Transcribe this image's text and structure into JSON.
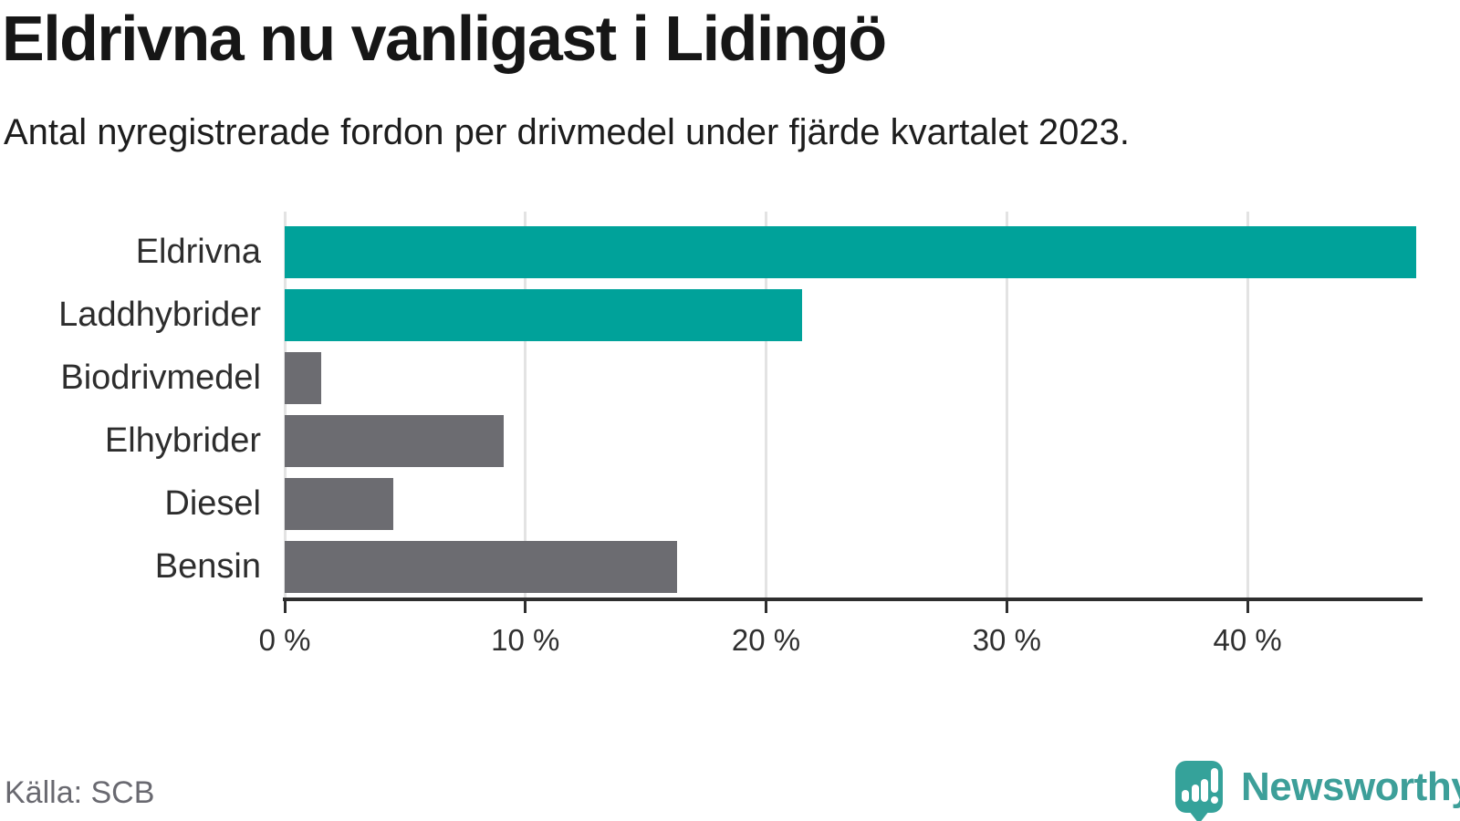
{
  "chart_data": {
    "type": "bar",
    "orientation": "horizontal",
    "title": "Eldrivna nu vanligast i Lidingö",
    "subtitle": "Antal nyregistrerade fordon per drivmedel under fjärde kvartalet 2023.",
    "categories": [
      "Eldrivna",
      "Laddhybrider",
      "Biodrivmedel",
      "Elhybrider",
      "Diesel",
      "Bensin"
    ],
    "values": [
      47,
      21.5,
      1.5,
      9.1,
      4.5,
      16.3
    ],
    "unit": "%",
    "xlim": [
      0,
      47.2
    ],
    "xticks": [
      0,
      10,
      20,
      30,
      40
    ],
    "xtick_labels": [
      "0 %",
      "10 %",
      "20 %",
      "30 %",
      "40 %"
    ],
    "highlighted": [
      "Eldrivna",
      "Laddhybrider"
    ],
    "highlight_color": "#00a29a",
    "default_color": "#6c6c71",
    "gridline_color": "#e3e3e3",
    "grid": true,
    "legend": false,
    "value_labels": false
  },
  "footer": {
    "source": "Källa: SCB",
    "brand": "Newsworthy",
    "brand_color": "#3d9f99",
    "logo_icon": "newsworthy-speech-bubble-bar-chart-icon"
  }
}
